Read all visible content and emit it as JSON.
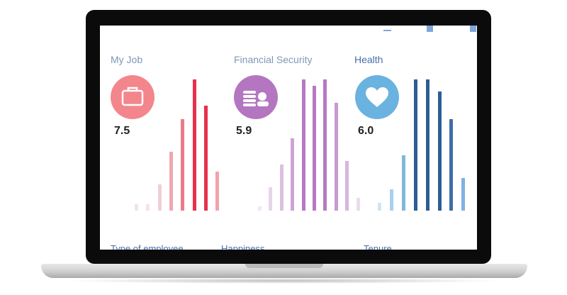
{
  "panels": [
    {
      "title": "My Job",
      "score": "7.5",
      "icon": "briefcase-icon",
      "title_color": "#7f97b8",
      "icon_bg": "#f3868c"
    },
    {
      "title": "Financial Security",
      "score": "5.9",
      "icon": "coins-person-icon",
      "title_color": "#7f97b8",
      "icon_bg": "#b476c0"
    },
    {
      "title": "Health",
      "score": "6.0",
      "icon": "heart-icon",
      "title_color": "#4a6fa5",
      "icon_bg": "#6ab2e0"
    }
  ],
  "bottom_labels": [
    "Type of employee",
    "Happiness",
    "Tenure"
  ],
  "chart_data": [
    {
      "type": "bar",
      "title": "My Job",
      "values": [
        5,
        5,
        20,
        45,
        70,
        100,
        80,
        30
      ],
      "colors": [
        "#f3e3e6",
        "#f3e3e6",
        "#efcfd5",
        "#f0a7b1",
        "#ed7b8a",
        "#e8304d",
        "#e8304d",
        "#f1a3ae"
      ]
    },
    {
      "type": "bar",
      "title": "Financial Security",
      "values": [
        3,
        18,
        35,
        55,
        100,
        95,
        100,
        82,
        38,
        10
      ],
      "colors": [
        "#f1e6f3",
        "#e7d4ea",
        "#dcbfe1",
        "#cda4d5",
        "#b779c4",
        "#b779c4",
        "#b779c4",
        "#c69bd0",
        "#d8b5de",
        "#ecdcef"
      ]
    },
    {
      "type": "bar",
      "title": "Health",
      "values": [
        6,
        16,
        42,
        100,
        100,
        91,
        70,
        25
      ],
      "colors": [
        "#cfe5f4",
        "#a7d1ee",
        "#7fb7dd",
        "#2e5d94",
        "#2e5d94",
        "#2e5d94",
        "#3d6ea8",
        "#7fb3e0"
      ]
    }
  ]
}
